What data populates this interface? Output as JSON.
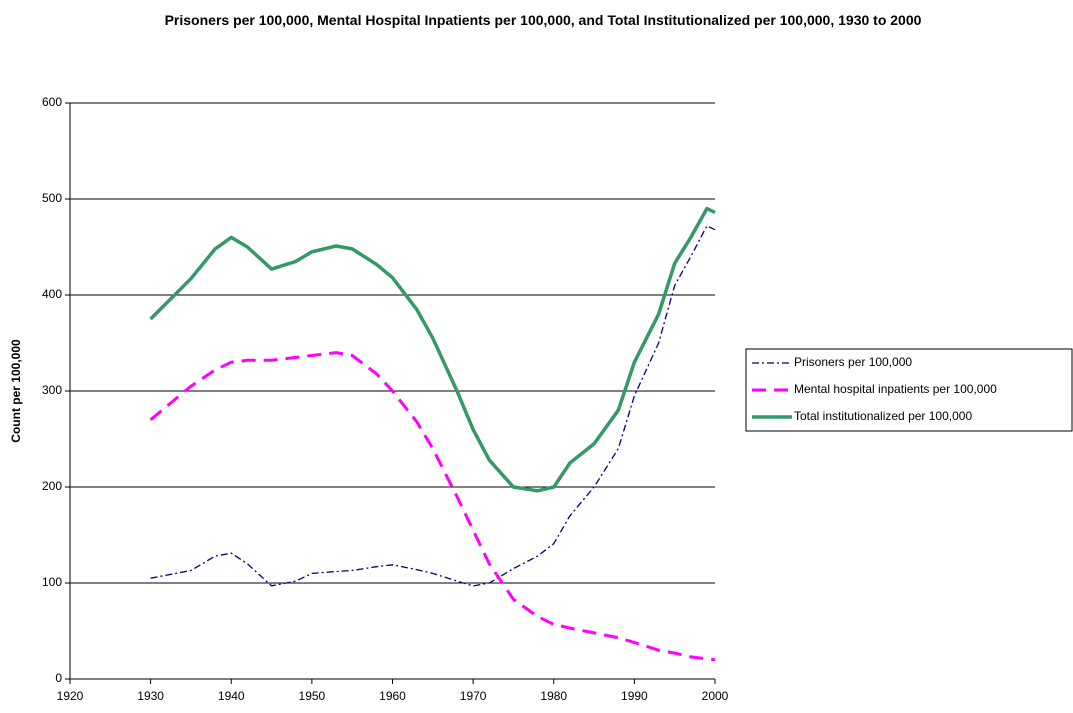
{
  "chart_data": {
    "type": "line",
    "title": "Prisoners per 100,000, Mental Hospital Inpatients per 100,000, and Total Institutionalized per 100,000, 1930 to 2000",
    "y_label": "Count per 100,000",
    "x": [
      1930,
      1935,
      1938,
      1940,
      1942,
      1945,
      1948,
      1950,
      1953,
      1955,
      1958,
      1960,
      1963,
      1965,
      1968,
      1970,
      1972,
      1975,
      1978,
      1980,
      1982,
      1985,
      1988,
      1990,
      1993,
      1995,
      1997,
      1999,
      2000
    ],
    "series": [
      {
        "name": "Prisoners per 100,000",
        "color": "#000080",
        "values": [
          105,
          113,
          128,
          131,
          120,
          97,
          102,
          110,
          112,
          113,
          117,
          119,
          114,
          110,
          102,
          97,
          100,
          115,
          128,
          141,
          170,
          200,
          240,
          295,
          350,
          410,
          440,
          472,
          468
        ]
      },
      {
        "name": "Mental hospital inpatients per 100,000",
        "color": "#ff00ff",
        "values": [
          270,
          305,
          322,
          330,
          332,
          332,
          335,
          337,
          340,
          337,
          318,
          300,
          268,
          240,
          190,
          155,
          120,
          83,
          65,
          57,
          53,
          48,
          43,
          38,
          30,
          27,
          23,
          21,
          20
        ]
      },
      {
        "name": "Total institutionalized per 100,000",
        "color": "#339966",
        "values": [
          375,
          417,
          448,
          460,
          450,
          427,
          435,
          445,
          451,
          448,
          432,
          418,
          385,
          355,
          300,
          260,
          228,
          200,
          196,
          200,
          225,
          245,
          280,
          330,
          380,
          433,
          460,
          490,
          486
        ]
      }
    ],
    "xlim": [
      1920,
      2000
    ],
    "xticks": [
      1920,
      1930,
      1940,
      1950,
      1960,
      1970,
      1980,
      1990,
      2000
    ],
    "ylim": [
      0,
      600
    ],
    "yticks": [
      0,
      100,
      200,
      300,
      400,
      500,
      600
    ],
    "grid": true,
    "legend": "right"
  }
}
